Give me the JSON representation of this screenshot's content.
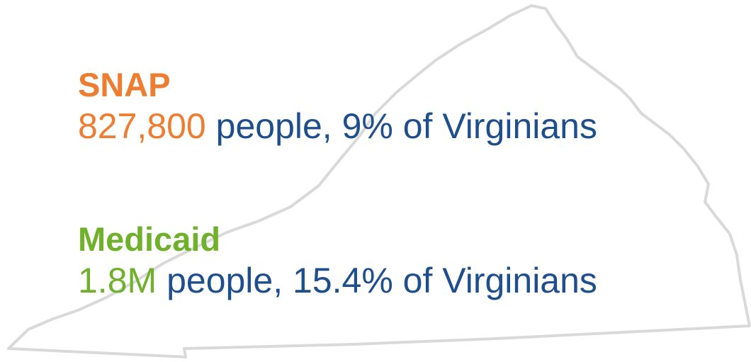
{
  "items": [
    {
      "title": "SNAP",
      "number": "827,800",
      "text": "people, 9% of Virginians"
    },
    {
      "title": "Medicaid",
      "number": "1.8M",
      "text": "people, 15.4% of Virginians"
    }
  ]
}
